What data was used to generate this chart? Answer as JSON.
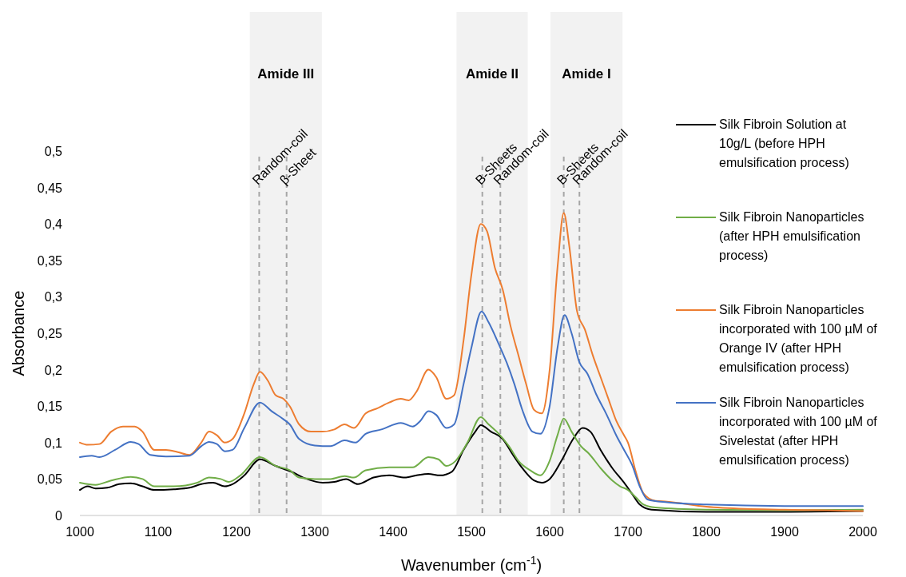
{
  "chart_data": {
    "type": "line",
    "xlabel": "Wavenumber (cm$^{-1}$)",
    "ylabel": "Absorbance",
    "xlim": [
      1000,
      2000
    ],
    "xticks": [
      1000,
      1100,
      1200,
      1300,
      1400,
      1500,
      1600,
      1700,
      1800,
      1900,
      2000
    ],
    "ylim": [
      0,
      0.5
    ],
    "yticks": [
      {
        "value": 0,
        "label": "0"
      },
      {
        "value": 0.05,
        "label": "0,05"
      },
      {
        "value": 0.1,
        "label": "0,1"
      },
      {
        "value": 0.15,
        "label": "0,15"
      },
      {
        "value": 0.2,
        "label": "0,2"
      },
      {
        "value": 0.25,
        "label": "0,25"
      },
      {
        "value": 0.3,
        "label": "0,3"
      },
      {
        "value": 0.35,
        "label": "0,35"
      },
      {
        "value": 0.4,
        "label": "0,4"
      },
      {
        "value": 0.45,
        "label": "0,45"
      },
      {
        "value": 0.5,
        "label": "0,5"
      }
    ],
    "grid": false,
    "legend": "top right",
    "line_style": "solid",
    "marker": "none",
    "bands": [
      {
        "axis": "x",
        "from": 1217,
        "to": 1309,
        "label": "Amide III",
        "color": "#f2f2f2"
      },
      {
        "axis": "x",
        "from": 1481,
        "to": 1572,
        "label": "Amide II",
        "color": "#f2f2f2"
      },
      {
        "axis": "x",
        "from": 1601,
        "to": 1693,
        "label": "Amide I",
        "color": "#f2f2f2"
      }
    ],
    "ref_lines": [
      {
        "axis": "x",
        "value": 1229,
        "label": "Random-coil",
        "color": "#a6a6a6",
        "line_style": "dashed"
      },
      {
        "axis": "x",
        "value": 1264,
        "label": "β-Sheet",
        "color": "#a6a6a6",
        "line_style": "dashed"
      },
      {
        "axis": "x",
        "value": 1514,
        "label": "B-Sheets",
        "color": "#a6a6a6",
        "line_style": "dashed"
      },
      {
        "axis": "x",
        "value": 1537,
        "label": "Random-coil",
        "color": "#a6a6a6",
        "line_style": "dashed"
      },
      {
        "axis": "x",
        "value": 1618,
        "label": "B-Sheets",
        "color": "#a6a6a6",
        "line_style": "dashed"
      },
      {
        "axis": "x",
        "value": 1638,
        "label": "Random-coil",
        "color": "#a6a6a6",
        "line_style": "dashed"
      }
    ],
    "series": [
      {
        "name": "Silk Fibroin Solution at 10g/L (before HPH emulsification process)",
        "color": "#000000",
        "x": [
          1000,
          1010,
          1020,
          1035,
          1050,
          1065,
          1080,
          1095,
          1120,
          1140,
          1155,
          1170,
          1185,
          1195,
          1210,
          1230,
          1250,
          1270,
          1290,
          1310,
          1325,
          1340,
          1355,
          1375,
          1395,
          1415,
          1430,
          1445,
          1460,
          1475,
          1490,
          1505,
          1512,
          1525,
          1540,
          1552,
          1565,
          1580,
          1590,
          1600,
          1615,
          1630,
          1642,
          1652,
          1665,
          1680,
          1695,
          1705,
          1715,
          1730,
          1800,
          1900,
          2000
        ],
        "values": [
          0.035,
          0.04,
          0.037,
          0.038,
          0.043,
          0.044,
          0.04,
          0.035,
          0.036,
          0.038,
          0.043,
          0.045,
          0.04,
          0.043,
          0.055,
          0.077,
          0.068,
          0.06,
          0.05,
          0.045,
          0.046,
          0.05,
          0.043,
          0.052,
          0.055,
          0.052,
          0.055,
          0.057,
          0.055,
          0.06,
          0.09,
          0.115,
          0.124,
          0.115,
          0.105,
          0.085,
          0.065,
          0.048,
          0.045,
          0.05,
          0.075,
          0.105,
          0.12,
          0.115,
          0.09,
          0.065,
          0.045,
          0.03,
          0.015,
          0.008,
          0.005,
          0.005,
          0.006
        ]
      },
      {
        "name": "Silk Fibroin Nanoparticles (after HPH emulsification process)",
        "color": "#70ad47",
        "x": [
          1000,
          1020,
          1040,
          1065,
          1080,
          1095,
          1120,
          1150,
          1165,
          1180,
          1190,
          1205,
          1230,
          1250,
          1268,
          1280,
          1300,
          1320,
          1338,
          1350,
          1365,
          1395,
          1425,
          1445,
          1458,
          1468,
          1480,
          1495,
          1512,
          1522,
          1535,
          1548,
          1560,
          1575,
          1588,
          1600,
          1610,
          1618,
          1628,
          1640,
          1650,
          1665,
          1680,
          1690,
          1700,
          1710,
          1720,
          1735,
          1800,
          1900,
          2000
        ],
        "values": [
          0.045,
          0.042,
          0.048,
          0.053,
          0.05,
          0.04,
          0.04,
          0.045,
          0.052,
          0.05,
          0.046,
          0.055,
          0.08,
          0.068,
          0.062,
          0.052,
          0.05,
          0.05,
          0.054,
          0.052,
          0.062,
          0.066,
          0.066,
          0.08,
          0.077,
          0.068,
          0.075,
          0.1,
          0.135,
          0.125,
          0.112,
          0.095,
          0.075,
          0.062,
          0.055,
          0.075,
          0.11,
          0.133,
          0.115,
          0.095,
          0.085,
          0.065,
          0.048,
          0.04,
          0.035,
          0.025,
          0.015,
          0.011,
          0.008,
          0.007,
          0.008
        ]
      },
      {
        "name": "Silk Fibroin Nanoparticles incorporated with 100 µM of Orange IV (after HPH emulsification process)",
        "color": "#ed7d31",
        "x": [
          1000,
          1010,
          1025,
          1040,
          1055,
          1070,
          1080,
          1095,
          1110,
          1125,
          1140,
          1155,
          1165,
          1175,
          1185,
          1195,
          1210,
          1222,
          1230,
          1240,
          1250,
          1260,
          1268,
          1280,
          1295,
          1310,
          1325,
          1338,
          1350,
          1365,
          1380,
          1395,
          1410,
          1420,
          1430,
          1445,
          1455,
          1468,
          1478,
          1490,
          1500,
          1512,
          1520,
          1530,
          1540,
          1550,
          1560,
          1570,
          1580,
          1590,
          1600,
          1610,
          1618,
          1625,
          1635,
          1645,
          1655,
          1665,
          1675,
          1685,
          1695,
          1700,
          1710,
          1720,
          1735,
          1750,
          1800,
          1850,
          1900,
          1950,
          2000
        ],
        "values": [
          0.1,
          0.097,
          0.098,
          0.115,
          0.122,
          0.122,
          0.115,
          0.09,
          0.09,
          0.087,
          0.083,
          0.1,
          0.115,
          0.11,
          0.1,
          0.105,
          0.14,
          0.18,
          0.197,
          0.185,
          0.165,
          0.16,
          0.15,
          0.125,
          0.115,
          0.115,
          0.118,
          0.125,
          0.12,
          0.14,
          0.147,
          0.155,
          0.16,
          0.158,
          0.17,
          0.2,
          0.19,
          0.16,
          0.165,
          0.24,
          0.33,
          0.4,
          0.39,
          0.34,
          0.31,
          0.26,
          0.22,
          0.18,
          0.145,
          0.14,
          0.2,
          0.34,
          0.415,
          0.37,
          0.28,
          0.255,
          0.22,
          0.19,
          0.16,
          0.13,
          0.11,
          0.1,
          0.06,
          0.03,
          0.02,
          0.019,
          0.012,
          0.009,
          0.008,
          0.007,
          0.006
        ]
      },
      {
        "name": "Silk Fibroin Nanoparticles incorporated with 100 µM of Sivelestat (after HPH emulsification process)",
        "color": "#4472c4",
        "x": [
          1000,
          1015,
          1025,
          1045,
          1065,
          1075,
          1090,
          1110,
          1140,
          1155,
          1165,
          1175,
          1185,
          1195,
          1210,
          1230,
          1245,
          1260,
          1268,
          1280,
          1300,
          1320,
          1338,
          1352,
          1365,
          1385,
          1410,
          1425,
          1435,
          1445,
          1455,
          1468,
          1478,
          1490,
          1500,
          1513,
          1522,
          1535,
          1545,
          1555,
          1565,
          1578,
          1588,
          1600,
          1610,
          1619,
          1628,
          1638,
          1648,
          1660,
          1672,
          1685,
          1695,
          1705,
          1715,
          1725,
          1750,
          1800,
          1900,
          2000
        ],
        "values": [
          0.08,
          0.082,
          0.08,
          0.09,
          0.101,
          0.098,
          0.083,
          0.081,
          0.082,
          0.095,
          0.101,
          0.098,
          0.088,
          0.09,
          0.12,
          0.155,
          0.143,
          0.132,
          0.125,
          0.105,
          0.096,
          0.095,
          0.103,
          0.1,
          0.112,
          0.118,
          0.127,
          0.122,
          0.13,
          0.143,
          0.138,
          0.12,
          0.125,
          0.18,
          0.23,
          0.28,
          0.265,
          0.235,
          0.21,
          0.18,
          0.145,
          0.115,
          0.112,
          0.15,
          0.23,
          0.275,
          0.25,
          0.21,
          0.195,
          0.165,
          0.14,
          0.11,
          0.09,
          0.07,
          0.04,
          0.022,
          0.018,
          0.015,
          0.013,
          0.013
        ]
      }
    ]
  }
}
